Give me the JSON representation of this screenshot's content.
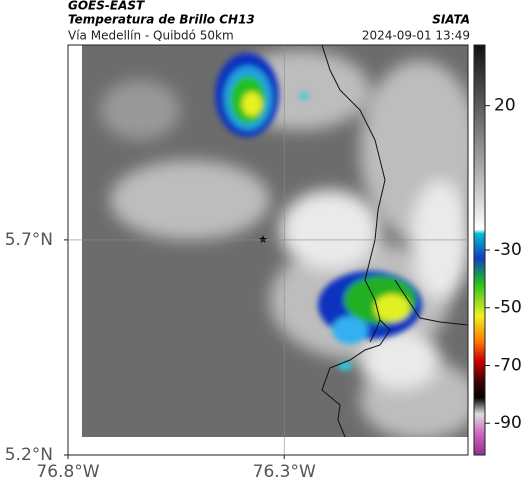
{
  "header": {
    "source": "GOES-EAST",
    "title": "Temperatura de Brillo CH13",
    "subtitle": "Vía Medellín - Quibdó 50km",
    "agency": "SIATA",
    "timestamp": "2024-09-01 13:49"
  },
  "map": {
    "xlim": [
      -76.8,
      -75.875
    ],
    "ylim": [
      5.2,
      6.153
    ],
    "xticks": [
      {
        "value": -76.8,
        "label": "76.8°W"
      },
      {
        "value": -76.3,
        "label": "76.3°W"
      }
    ],
    "yticks": [
      {
        "value": 5.2,
        "label": "5.2°N"
      },
      {
        "value": 5.7,
        "label": "5.7°N"
      }
    ],
    "grid": true
  },
  "colorbar": {
    "clim": [
      -101,
      41
    ],
    "ticks": [
      20,
      -30,
      -50,
      -70,
      -90
    ]
  }
}
